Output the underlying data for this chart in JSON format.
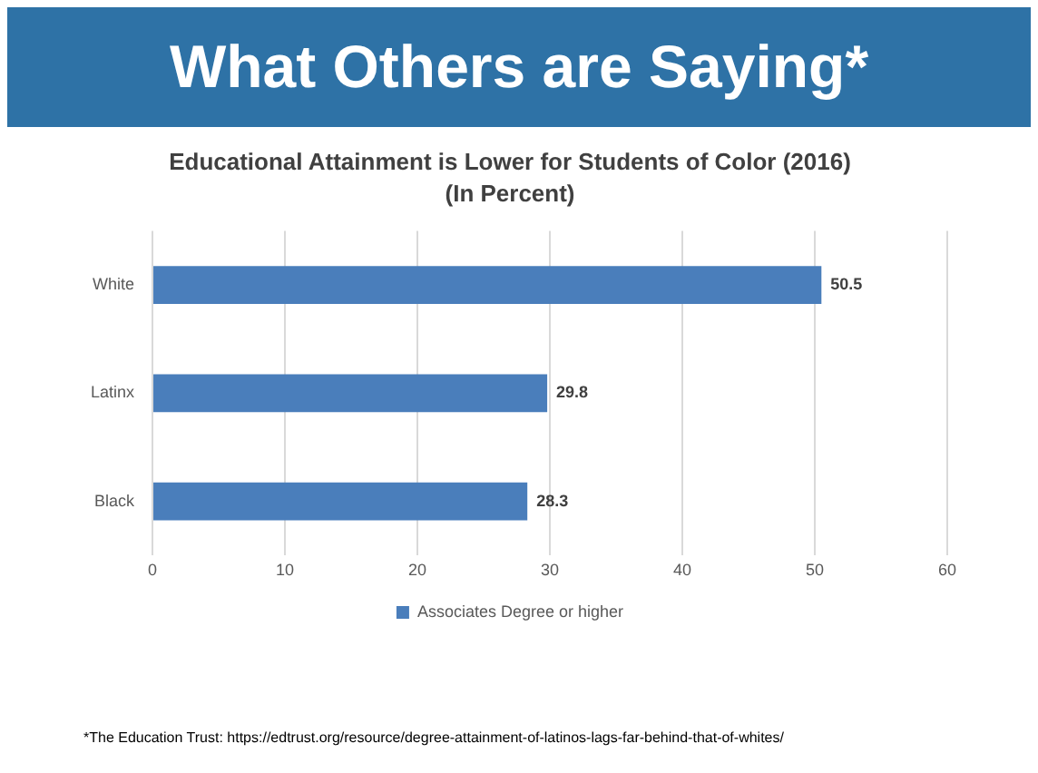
{
  "chart_data": {
    "type": "bar",
    "orientation": "horizontal",
    "title": "Educational Attainment is Lower for Students of Color (2016)",
    "subtitle": "(In Percent)",
    "categories": [
      "White",
      "Latinx",
      "Black"
    ],
    "series": [
      {
        "name": "Associates Degree or higher",
        "color": "#4a7ebb",
        "values": [
          50.5,
          29.8,
          28.3
        ]
      }
    ],
    "xlim": [
      0,
      60
    ],
    "xticks": [
      0,
      10,
      20,
      30,
      40,
      50,
      60
    ],
    "grid": "x",
    "legend": "bottom",
    "data_labels": true,
    "annotations": [
      "What Others are Saying*",
      "*The Education Trust: https://edtrust.org/resource/degree-attainment-of-latinos-lags-far-behind-that-of-whites/"
    ]
  }
}
